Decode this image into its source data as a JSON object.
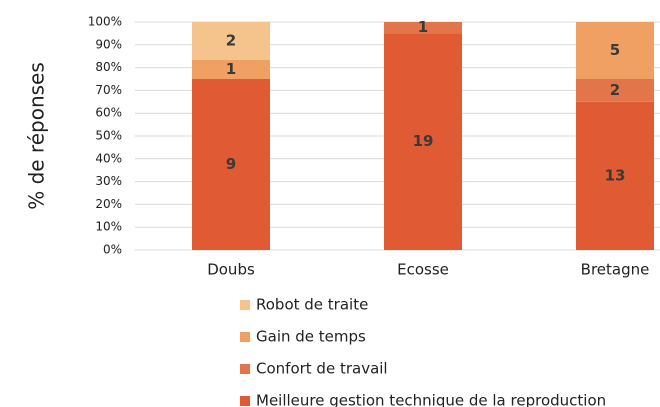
{
  "chart_data": {
    "type": "stacked_bar",
    "ylabel": "% de réponses",
    "categories": [
      "Doubs",
      "Ecosse",
      "Bretagne"
    ],
    "series": [
      {
        "name": "Meilleure gestion technique de la reproduction",
        "color": "#e05a33",
        "values": [
          75,
          95,
          65
        ],
        "counts": [
          9,
          19,
          13
        ]
      },
      {
        "name": "Confort de travail",
        "color": "#e2764a",
        "values": [
          null,
          5,
          10
        ],
        "counts": [
          null,
          1,
          2
        ]
      },
      {
        "name": "Gain de temps",
        "color": "#f0a062",
        "values": [
          8.33,
          null,
          25
        ],
        "counts": [
          1,
          null,
          5
        ]
      },
      {
        "name": "Robot de traite",
        "color": "#f4c48c",
        "values": [
          16.67,
          null,
          null
        ],
        "counts": [
          2,
          null,
          null
        ]
      }
    ],
    "ylim": [
      0,
      100
    ],
    "yticks": [
      {
        "value": 0,
        "label": "0%"
      },
      {
        "value": 10,
        "label": "10%"
      },
      {
        "value": 20,
        "label": "20%"
      },
      {
        "value": 30,
        "label": "30%"
      },
      {
        "value": 40,
        "label": "40%"
      },
      {
        "value": 50,
        "label": "50%"
      },
      {
        "value": 60,
        "label": "60%"
      },
      {
        "value": 70,
        "label": "70%"
      },
      {
        "value": 80,
        "label": "80%"
      },
      {
        "value": 90,
        "label": "90%"
      },
      {
        "value": 100,
        "label": "100%"
      }
    ],
    "grid": true
  }
}
